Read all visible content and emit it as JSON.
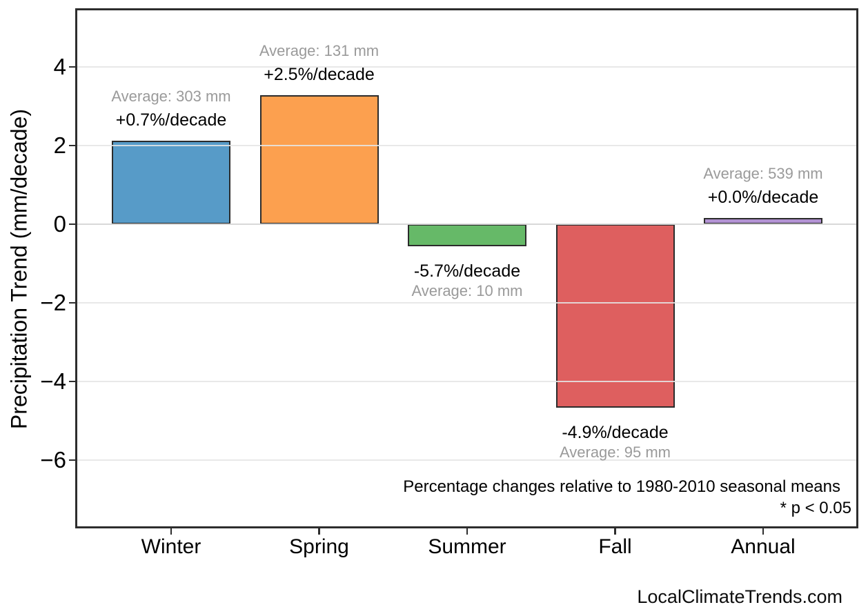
{
  "figure": {
    "watermark": "LocalClimateTrends.com"
  },
  "chart_data": {
    "type": "bar",
    "title": "",
    "xlabel": "",
    "ylabel": "Precipitation Trend (mm/decade)",
    "categories": [
      "Winter",
      "Spring",
      "Summer",
      "Fall",
      "Annual"
    ],
    "values": [
      2.12,
      3.28,
      -0.57,
      -4.66,
      0.15
    ],
    "bars": [
      {
        "category": "Winter",
        "value": 2.12,
        "color": "#579BC8",
        "pct_label": "+0.7%/decade",
        "avg_label": "Average: 303 mm",
        "average_mm": 303,
        "pct_per_decade": 0.7,
        "label_side": "above"
      },
      {
        "category": "Spring",
        "value": 3.28,
        "color": "#FCA04F",
        "pct_label": "+2.5%/decade",
        "avg_label": "Average: 131 mm",
        "average_mm": 131,
        "pct_per_decade": 2.5,
        "label_side": "above"
      },
      {
        "category": "Summer",
        "value": -0.57,
        "color": "#66B968",
        "pct_label": "-5.7%/decade",
        "avg_label": "Average: 10 mm",
        "average_mm": 10,
        "pct_per_decade": -5.7,
        "label_side": "below"
      },
      {
        "category": "Fall",
        "value": -4.66,
        "color": "#DE5F5F",
        "pct_label": "-4.9%/decade",
        "avg_label": "Average: 95 mm",
        "average_mm": 95,
        "pct_per_decade": -4.9,
        "label_side": "below"
      },
      {
        "category": "Annual",
        "value": 0.15,
        "color": "#B292D3",
        "pct_label": "+0.0%/decade",
        "avg_label": "Average: 539 mm",
        "average_mm": 539,
        "pct_per_decade": 0.0,
        "label_side": "above"
      }
    ],
    "yticks": [
      {
        "value": 4,
        "label": "4"
      },
      {
        "value": 2,
        "label": "2"
      },
      {
        "value": 0,
        "label": "0"
      },
      {
        "value": -2,
        "label": "−2"
      },
      {
        "value": -4,
        "label": "−4"
      },
      {
        "value": -6,
        "label": "−6"
      }
    ],
    "ylim": [
      -7.7,
      5.45
    ],
    "grid": true,
    "legend": false,
    "zero_line": true,
    "notes": [
      "Percentage changes relative to 1980-2010 seasonal means",
      "* p < 0.05"
    ],
    "colors": {
      "frame": "#2d2d2d",
      "grid": "#e5e5e5",
      "zero_line": "#7f7f7f",
      "bar_edge": "#2b2b2b",
      "annotation_black": "#000000",
      "annotation_gray": "#9a9a9a"
    }
  }
}
